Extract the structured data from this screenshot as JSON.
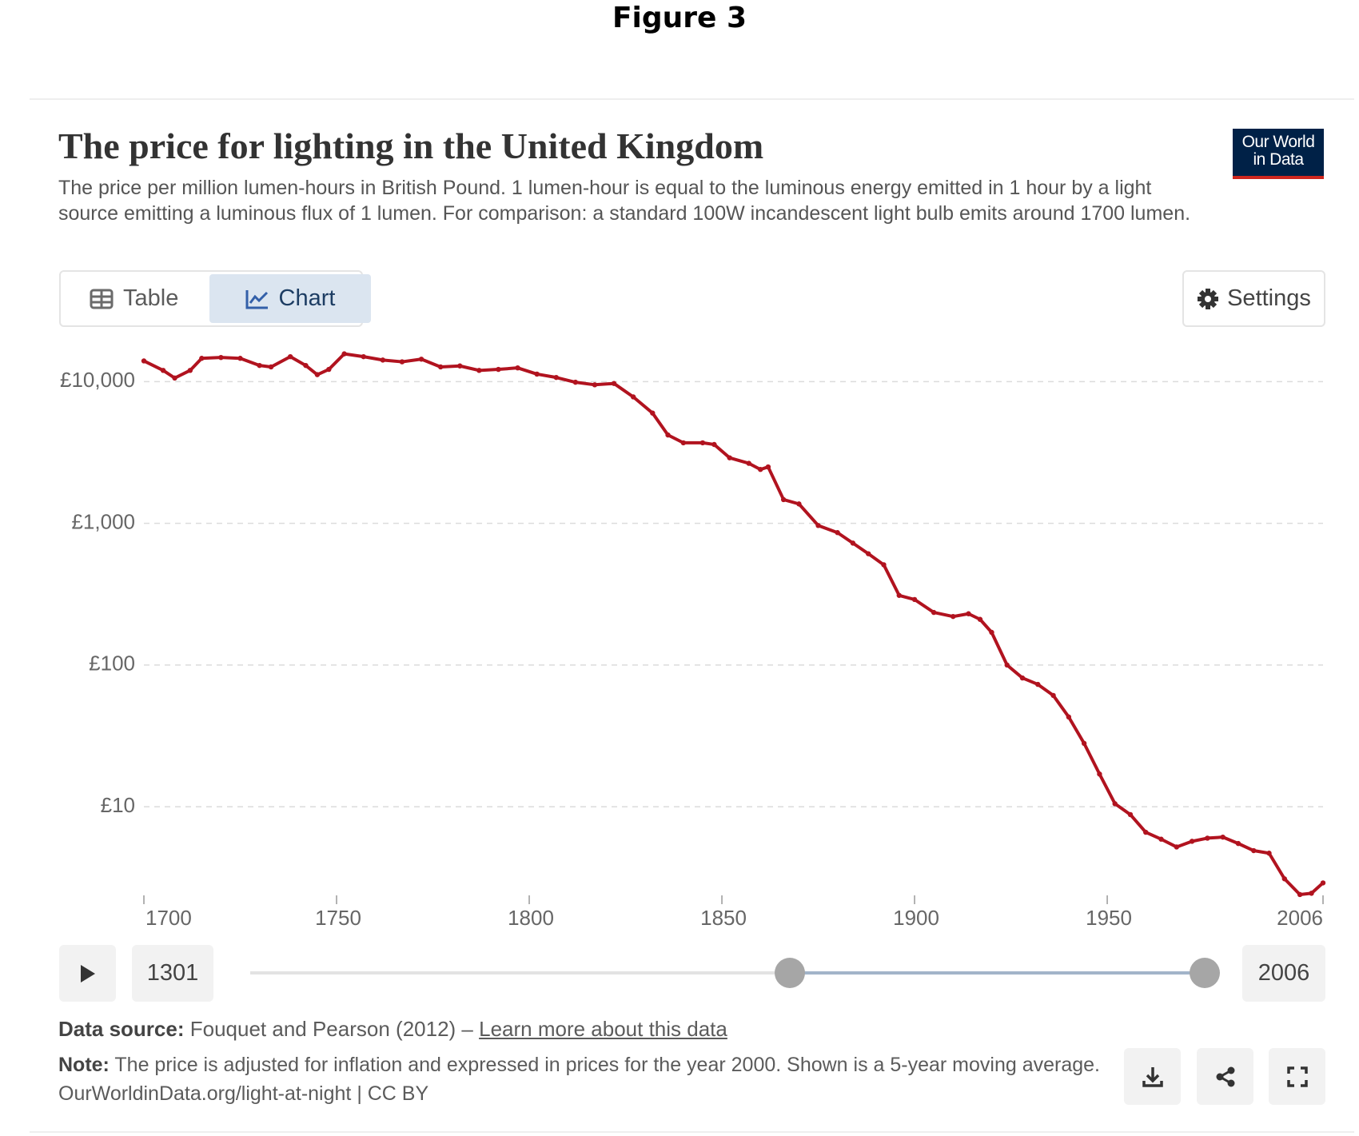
{
  "figure_label": "Figure 3",
  "logo": {
    "line1": "Our World",
    "line2": "in Data"
  },
  "tabs": {
    "table": "Table",
    "chart": "Chart"
  },
  "settings": "Settings",
  "timeline": {
    "start": "1301",
    "end": "2006"
  },
  "footer": {
    "source_label": "Data source:",
    "source": "Fouquet and Pearson (2012) –",
    "link": "Learn more about this data",
    "note_label": "Note:",
    "note": "The price is adjusted for inflation and expressed in prices for the year 2000. Shown is a 5-year moving average.",
    "url": "OurWorldinData.org/light-at-night | CC BY"
  },
  "chart_data": {
    "type": "line",
    "title": "The price for lighting in the United Kingdom",
    "subtitle": "The price per million lumen-hours in British Pound. 1 lumen-hour is equal to the luminous energy emitted in 1 hour by a light source emitting a luminous flux of 1 lumen. For comparison: a standard 100W incandescent light bulb emits around 1700 lumen.",
    "x": [
      1700,
      1705,
      1708,
      1712,
      1715,
      1720,
      1725,
      1730,
      1733,
      1738,
      1742,
      1745,
      1748,
      1752,
      1757,
      1762,
      1767,
      1772,
      1777,
      1782,
      1787,
      1792,
      1797,
      1802,
      1807,
      1812,
      1817,
      1822,
      1827,
      1832,
      1836,
      1840,
      1845,
      1848,
      1852,
      1857,
      1860,
      1862,
      1866,
      1870,
      1875,
      1880,
      1884,
      1888,
      1892,
      1896,
      1900,
      1905,
      1910,
      1914,
      1917,
      1920,
      1924,
      1928,
      1932,
      1936,
      1940,
      1944,
      1948,
      1952,
      1956,
      1960,
      1964,
      1968,
      1972,
      1976,
      1980,
      1984,
      1988,
      1992,
      1996,
      2000,
      2003,
      2006
    ],
    "values": [
      14000,
      12000,
      10600,
      12000,
      14600,
      14800,
      14600,
      13000,
      12700,
      15000,
      13000,
      11200,
      12200,
      15700,
      15000,
      14200,
      13800,
      14400,
      12700,
      12900,
      12000,
      12200,
      12500,
      11300,
      10700,
      9900,
      9500,
      9700,
      7800,
      6000,
      4200,
      3700,
      3700,
      3600,
      2900,
      2650,
      2400,
      2500,
      1470,
      1370,
      965,
      860,
      725,
      610,
      510,
      310,
      290,
      235,
      220,
      230,
      210,
      170,
      100,
      81,
      73,
      61,
      43,
      28,
      17,
      10.5,
      8.8,
      6.6,
      5.9,
      5.2,
      5.7,
      6.0,
      6.1,
      5.5,
      4.9,
      4.7,
      3.1,
      2.4,
      2.45,
      2.9
    ],
    "color": "#b1131f",
    "log_scale": true,
    "grid": true,
    "xlim": [
      1700,
      2006
    ],
    "xticks": [
      1700,
      1750,
      1800,
      1850,
      1900,
      1950,
      2006
    ],
    "ylim": [
      2,
      20000
    ],
    "yticks": [
      {
        "value": 10,
        "label": "£10"
      },
      {
        "value": 100,
        "label": "£100"
      },
      {
        "value": 1000,
        "label": "£1,000"
      },
      {
        "value": 10000,
        "label": "£10,000"
      }
    ]
  }
}
